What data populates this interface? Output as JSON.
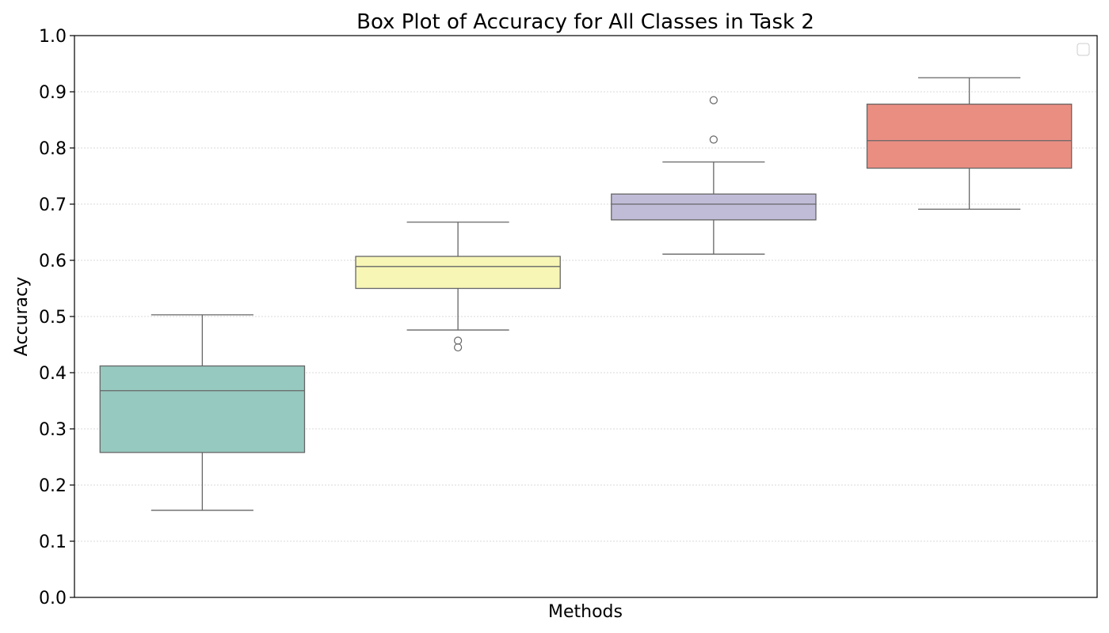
{
  "chart_data": {
    "type": "box",
    "title": "Box Plot of Accuracy for All Classes in Task 2",
    "xlabel": "Methods",
    "ylabel": "Accuracy",
    "ylim": [
      0,
      1.0
    ],
    "yticks": [
      0.0,
      0.1,
      0.2,
      0.3,
      0.4,
      0.5,
      0.6,
      0.7,
      0.8,
      0.9,
      1.0
    ],
    "ytick_labels": [
      "0.0",
      "0.1",
      "0.2",
      "0.3",
      "0.4",
      "0.5",
      "0.6",
      "0.7",
      "0.8",
      "0.9",
      "1.0"
    ],
    "grid": "horizontal dotted",
    "legend": "top-right (empty)",
    "boxes": [
      {
        "color": "#96c9c0",
        "whisker_low": 0.155,
        "q1": 0.258,
        "median": 0.368,
        "q3": 0.412,
        "whisker_high": 0.503,
        "outliers": []
      },
      {
        "color": "#f7f6b5",
        "whisker_low": 0.476,
        "q1": 0.55,
        "median": 0.589,
        "q3": 0.607,
        "whisker_high": 0.668,
        "outliers": [
          0.457,
          0.445
        ]
      },
      {
        "color": "#c0bcd8",
        "whisker_low": 0.611,
        "q1": 0.672,
        "median": 0.7,
        "q3": 0.718,
        "whisker_high": 0.775,
        "outliers": [
          0.815,
          0.885
        ]
      },
      {
        "color": "#eb8e82",
        "whisker_low": 0.691,
        "q1": 0.764,
        "median": 0.813,
        "q3": 0.878,
        "whisker_high": 0.925,
        "outliers": []
      }
    ],
    "colors": {
      "box_edge": "#666666",
      "grid": "#cccccc",
      "axis": "#000000"
    }
  }
}
